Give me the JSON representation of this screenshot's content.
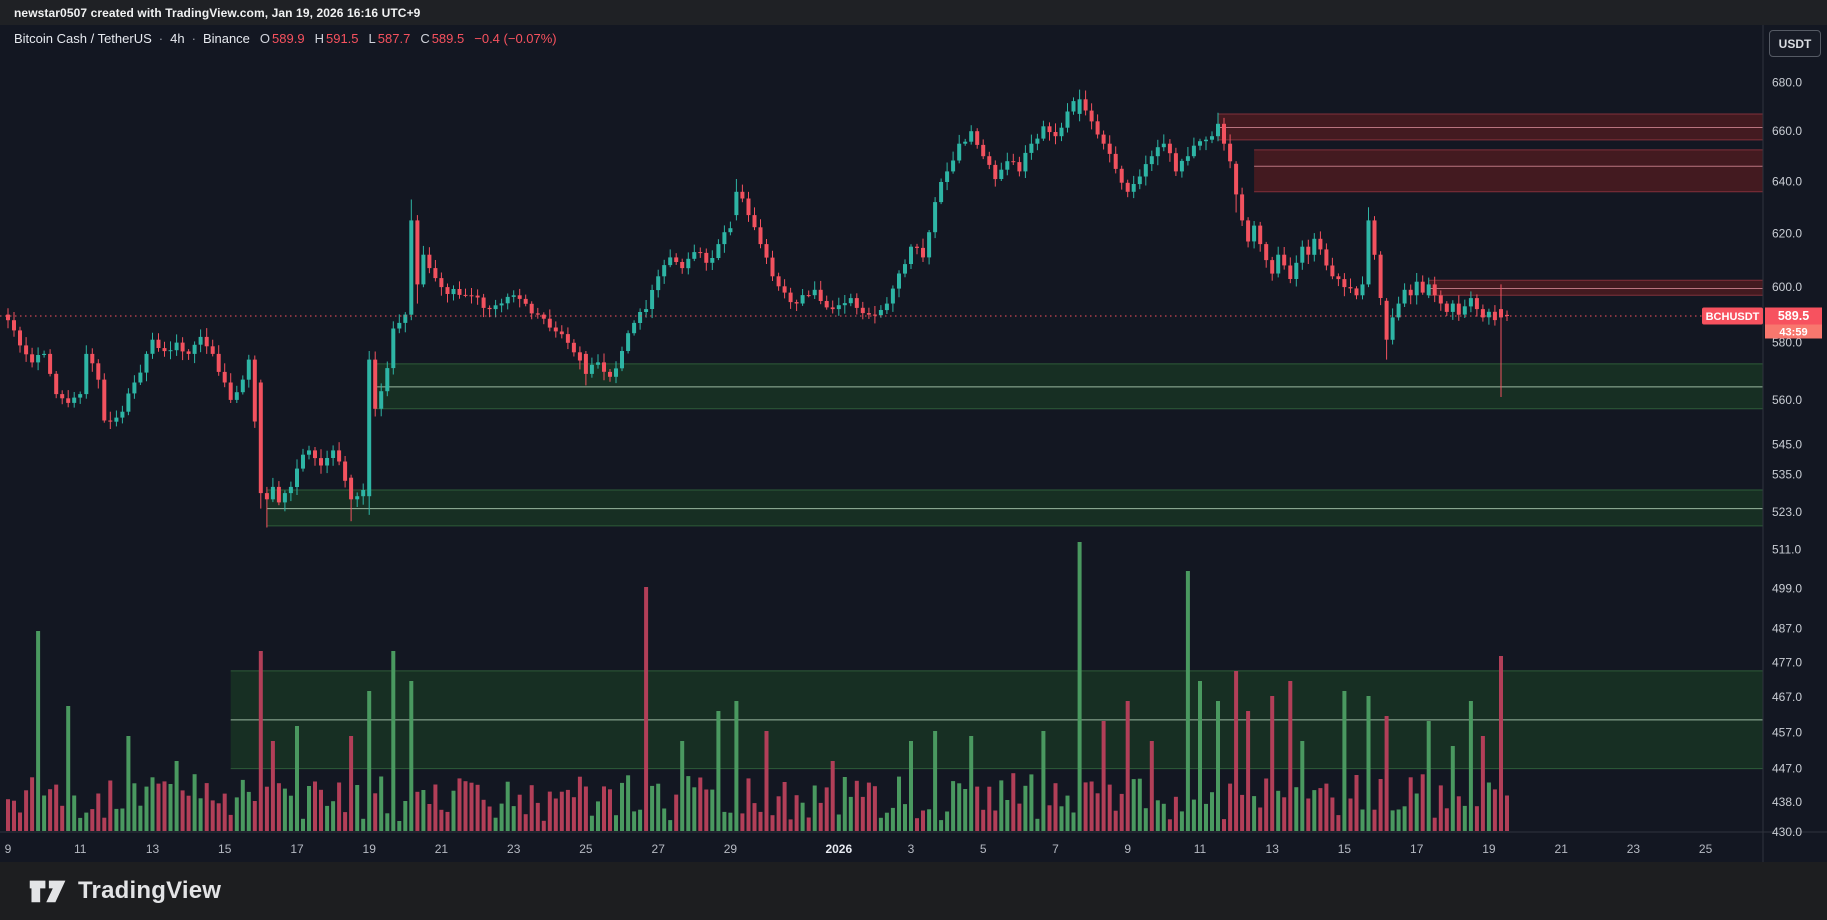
{
  "attribution": {
    "text": "newstar0507 created with TradingView.com, Jan 19, 2026 16:16 UTC+9"
  },
  "symbol": {
    "name": "Bitcoin Cash / TetherUS",
    "interval": "4h",
    "exchange": "Binance",
    "dot": "·",
    "o_label": "O",
    "o": "589.9",
    "h_label": "H",
    "h": "591.5",
    "l_label": "L",
    "l": "587.7",
    "c_label": "C",
    "c": "589.5",
    "change": "−0.4 (−0.07%)"
  },
  "price_axis": {
    "currency": "USDT",
    "ticks": [
      680,
      660,
      640,
      620,
      600,
      580,
      560,
      545,
      535,
      523,
      511,
      499,
      487,
      477,
      467,
      457,
      447,
      438,
      430
    ],
    "tag": {
      "symbol": "BCHUSDT",
      "price": "589.5",
      "countdown": "43:59"
    }
  },
  "time_axis": {
    "ticks": [
      {
        "label": "9",
        "i": 0
      },
      {
        "label": "11",
        "i": 12
      },
      {
        "label": "13",
        "i": 24
      },
      {
        "label": "15",
        "i": 36
      },
      {
        "label": "17",
        "i": 48
      },
      {
        "label": "19",
        "i": 60
      },
      {
        "label": "21",
        "i": 72
      },
      {
        "label": "23",
        "i": 84
      },
      {
        "label": "25",
        "i": 96
      },
      {
        "label": "27",
        "i": 108
      },
      {
        "label": "29",
        "i": 120
      },
      {
        "label": "2026",
        "i": 138,
        "bold": true
      },
      {
        "label": "3",
        "i": 150
      },
      {
        "label": "5",
        "i": 162
      },
      {
        "label": "7",
        "i": 174
      },
      {
        "label": "9",
        "i": 186
      },
      {
        "label": "11",
        "i": 198
      },
      {
        "label": "13",
        "i": 210
      },
      {
        "label": "15",
        "i": 222
      },
      {
        "label": "17",
        "i": 234
      },
      {
        "label": "19",
        "i": 246
      },
      {
        "label": "21",
        "i": 258
      },
      {
        "label": "23",
        "i": 270
      },
      {
        "label": "25",
        "i": 282
      }
    ]
  },
  "logo": {
    "text": "TradingView"
  },
  "colors": {
    "background": "#131722",
    "up": "#2eb5a5",
    "down": "#f2525f",
    "accent_red": "#f7525f",
    "countdown_bg": "#f8776e",
    "vol_up": "#4a9960",
    "vol_down": "#b23f58",
    "supply_fill": "rgba(179,33,31,0.30)",
    "supply_border": "#82303b",
    "supply_mid": "#b9747f",
    "demand_fill": "rgba(34,120,40,0.25)",
    "demand_border": "#2e5c39",
    "demand_mid": "#9ab8a0",
    "axis_text": "#c9cdd4",
    "axis_line": "#2f333d",
    "time_text": "#b6bac3"
  },
  "chart_data": {
    "type": "candlestick+volume",
    "symbol": "BCHUSDT",
    "exchange": "Binance",
    "interval": "4h",
    "scale": "log",
    "visible_dates": "Dec 9 2025 – Jan 25 2026",
    "num_candles": 250,
    "price_top": 703,
    "price_bottom": 430,
    "current_price": 589.5,
    "last_candle": {
      "open": 589.9,
      "high": 591.5,
      "low": 587.7,
      "close": 589.5,
      "change": -0.4,
      "change_pct": -0.07
    },
    "close_waypoints": [
      [
        0,
        588
      ],
      [
        2,
        579
      ],
      [
        4,
        573
      ],
      [
        6,
        576
      ],
      [
        8,
        562
      ],
      [
        10,
        559
      ],
      [
        12,
        562
      ],
      [
        13,
        576
      ],
      [
        15,
        567
      ],
      [
        16,
        553
      ],
      [
        18,
        554
      ],
      [
        19,
        556
      ],
      [
        21,
        566
      ],
      [
        23,
        576
      ],
      [
        24,
        581
      ],
      [
        26,
        577
      ],
      [
        28,
        580
      ],
      [
        30,
        576
      ],
      [
        32,
        582
      ],
      [
        34,
        576
      ],
      [
        36,
        566
      ],
      [
        37,
        560
      ],
      [
        39,
        567
      ],
      [
        40,
        574
      ],
      [
        42,
        529
      ],
      [
        43,
        527
      ],
      [
        44,
        531
      ],
      [
        45,
        526
      ],
      [
        46,
        529
      ],
      [
        47,
        531
      ],
      [
        48,
        537
      ],
      [
        50,
        543
      ],
      [
        52,
        538
      ],
      [
        54,
        543
      ],
      [
        56,
        533
      ],
      [
        57,
        527
      ],
      [
        58,
        528
      ],
      [
        59,
        530
      ],
      [
        60,
        574
      ],
      [
        61,
        557
      ],
      [
        62,
        563
      ],
      [
        63,
        571
      ],
      [
        64,
        585
      ],
      [
        65,
        587
      ],
      [
        66,
        590
      ],
      [
        67,
        625
      ],
      [
        68,
        601
      ],
      [
        69,
        612
      ],
      [
        70,
        607
      ],
      [
        72,
        600
      ],
      [
        76,
        597
      ],
      [
        80,
        592
      ],
      [
        84,
        597
      ],
      [
        88,
        590
      ],
      [
        92,
        583
      ],
      [
        96,
        569
      ],
      [
        98,
        573
      ],
      [
        100,
        568
      ],
      [
        102,
        577
      ],
      [
        104,
        587
      ],
      [
        106,
        592
      ],
      [
        108,
        604
      ],
      [
        110,
        611
      ],
      [
        112,
        607
      ],
      [
        114,
        613
      ],
      [
        116,
        609
      ],
      [
        118,
        616
      ],
      [
        120,
        622
      ],
      [
        121,
        636
      ],
      [
        123,
        627
      ],
      [
        125,
        616
      ],
      [
        127,
        604
      ],
      [
        129,
        598
      ],
      [
        131,
        594
      ],
      [
        134,
        599
      ],
      [
        137,
        592
      ],
      [
        140,
        596
      ],
      [
        143,
        590
      ],
      [
        146,
        594
      ],
      [
        148,
        605
      ],
      [
        150,
        615
      ],
      [
        152,
        611
      ],
      [
        154,
        632
      ],
      [
        156,
        644
      ],
      [
        158,
        655
      ],
      [
        160,
        660
      ],
      [
        162,
        650
      ],
      [
        164,
        641
      ],
      [
        166,
        648
      ],
      [
        168,
        644
      ],
      [
        170,
        655
      ],
      [
        172,
        662
      ],
      [
        174,
        658
      ],
      [
        176,
        668
      ],
      [
        178,
        673
      ],
      [
        180,
        664
      ],
      [
        182,
        655
      ],
      [
        184,
        645
      ],
      [
        186,
        636
      ],
      [
        188,
        642
      ],
      [
        190,
        650
      ],
      [
        192,
        655
      ],
      [
        194,
        644
      ],
      [
        196,
        650
      ],
      [
        198,
        656
      ],
      [
        200,
        658
      ],
      [
        201,
        663
      ],
      [
        202,
        655
      ],
      [
        203,
        648
      ],
      [
        204,
        635
      ],
      [
        205,
        625
      ],
      [
        206,
        617
      ],
      [
        207,
        623
      ],
      [
        208,
        616
      ],
      [
        209,
        610
      ],
      [
        210,
        605
      ],
      [
        211,
        612
      ],
      [
        212,
        608
      ],
      [
        213,
        603
      ],
      [
        214,
        609
      ],
      [
        215,
        615
      ],
      [
        216,
        612
      ],
      [
        217,
        618
      ],
      [
        218,
        614
      ],
      [
        219,
        608
      ],
      [
        220,
        604
      ],
      [
        222,
        600
      ],
      [
        224,
        597
      ],
      [
        225,
        601
      ],
      [
        226,
        625
      ],
      [
        227,
        612
      ],
      [
        228,
        596
      ],
      [
        229,
        581
      ],
      [
        230,
        589
      ],
      [
        231,
        594
      ],
      [
        232,
        599
      ],
      [
        233,
        597
      ],
      [
        234,
        602
      ],
      [
        235,
        598
      ],
      [
        236,
        601
      ],
      [
        237,
        597
      ],
      [
        238,
        594
      ],
      [
        239,
        591
      ],
      [
        240,
        594
      ],
      [
        241,
        590
      ],
      [
        242,
        593
      ],
      [
        243,
        596
      ],
      [
        244,
        592
      ],
      [
        245,
        589
      ],
      [
        246,
        591
      ],
      [
        247,
        588
      ],
      [
        248,
        589
      ],
      [
        249,
        589.5
      ]
    ],
    "candle_overrides": {
      "42": [
        566,
        567,
        524,
        529
      ],
      "43": [
        529,
        531,
        518,
        527
      ],
      "57": [
        534,
        535,
        520,
        527
      ],
      "60": [
        528,
        577,
        522,
        574
      ],
      "67": [
        590,
        633,
        588,
        625
      ],
      "68": [
        625,
        627,
        594,
        601
      ],
      "96": [
        576,
        577,
        565,
        569
      ],
      "121": [
        627,
        641,
        625,
        636
      ],
      "178": [
        667,
        677,
        664,
        673
      ],
      "201": [
        658,
        667.5,
        656,
        663
      ],
      "204": [
        647,
        648,
        628,
        635
      ],
      "226": [
        601,
        630,
        600,
        625
      ],
      "229": [
        595,
        596,
        574,
        581
      ],
      "236": [
        597,
        603.5,
        596,
        601
      ],
      "248": [
        592,
        601,
        561,
        589
      ],
      "249": [
        589.9,
        591.5,
        587.7,
        589.5
      ]
    },
    "volume_spikes": {
      "5": [
        200,
        1
      ],
      "10": [
        125,
        1
      ],
      "20": [
        95,
        1
      ],
      "28": [
        70,
        1
      ],
      "42": [
        180,
        0
      ],
      "44": [
        90,
        0
      ],
      "48": [
        105,
        1
      ],
      "57": [
        95,
        0
      ],
      "60": [
        140,
        1
      ],
      "64": [
        180,
        1
      ],
      "67": [
        150,
        1
      ],
      "106": [
        244,
        0
      ],
      "112": [
        90,
        1
      ],
      "118": [
        120,
        1
      ],
      "121": [
        130,
        1
      ],
      "126": [
        100,
        0
      ],
      "137": [
        70,
        0
      ],
      "150": [
        90,
        1
      ],
      "154": [
        100,
        1
      ],
      "160": [
        95,
        1
      ],
      "172": [
        100,
        1
      ],
      "178": [
        289,
        1
      ],
      "182": [
        110,
        0
      ],
      "186": [
        130,
        0
      ],
      "190": [
        90,
        0
      ],
      "196": [
        260,
        1
      ],
      "198": [
        150,
        1
      ],
      "201": [
        130,
        1
      ],
      "204": [
        160,
        0
      ],
      "206": [
        120,
        0
      ],
      "210": [
        135,
        0
      ],
      "213": [
        150,
        0
      ],
      "215": [
        90,
        1
      ],
      "222": [
        140,
        1
      ],
      "226": [
        135,
        1
      ],
      "229": [
        115,
        0
      ],
      "236": [
        110,
        1
      ],
      "240": [
        85,
        1
      ],
      "243": [
        130,
        1
      ],
      "245": [
        95,
        0
      ],
      "248": [
        175,
        0
      ]
    },
    "supply_zones": [
      {
        "price_top": 667,
        "price_mid": 661.5,
        "price_bottom": 656.5,
        "start_index": 201
      },
      {
        "price_top": 652.5,
        "price_mid": 646,
        "price_bottom": 636,
        "start_index": 207
      },
      {
        "price_top": 602.5,
        "price_mid": 599.5,
        "price_bottom": 597,
        "start_index": 236
      }
    ],
    "demand_zones": [
      {
        "price_top": 572.5,
        "price_mid": 564.5,
        "price_bottom": 557,
        "start_index": 61
      },
      {
        "price_top": 530,
        "price_mid": 524,
        "price_bottom": 518.5,
        "start_index": 43
      },
      {
        "price_top": 474.5,
        "price_mid": 460.5,
        "price_bottom": 447,
        "start_index": 37
      }
    ]
  }
}
